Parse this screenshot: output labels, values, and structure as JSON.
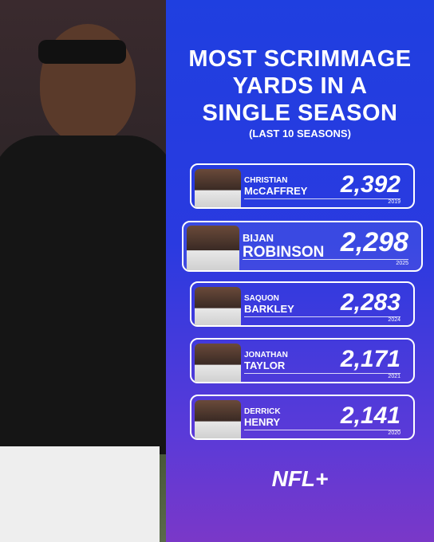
{
  "header": {
    "title": [
      "MOST SCRIMMAGE",
      "YARDS IN A",
      "SINGLE SEASON"
    ],
    "subtitle": "(LAST 10 SEASONS)"
  },
  "players": [
    {
      "first": "CHRISTIAN",
      "last": "McCAFFREY",
      "yards": "2,392",
      "year": "2019",
      "highlight": false
    },
    {
      "first": "BIJAN",
      "last": "ROBINSON",
      "yards": "2,298",
      "year": "2025",
      "highlight": true
    },
    {
      "first": "SAQUON",
      "last": "BARKLEY",
      "yards": "2,283",
      "year": "2024",
      "highlight": false
    },
    {
      "first": "JONATHAN",
      "last": "TAYLOR",
      "yards": "2,171",
      "year": "2021",
      "highlight": false
    },
    {
      "first": "DERRICK",
      "last": "HENRY",
      "yards": "2,141",
      "year": "2020",
      "highlight": false
    }
  ],
  "logo": "NFL+"
}
